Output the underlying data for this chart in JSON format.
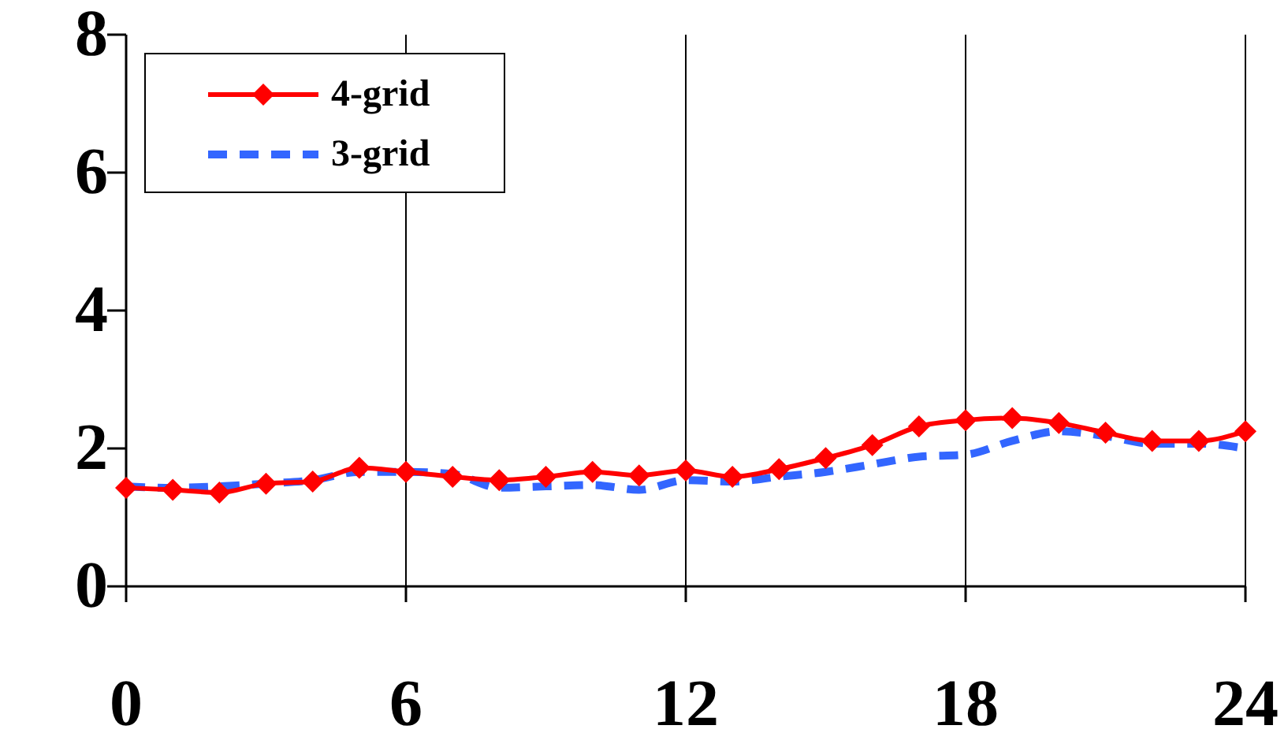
{
  "chart_data": {
    "type": "line",
    "x": [
      0,
      1,
      2,
      3,
      4,
      5,
      6,
      7,
      8,
      9,
      10,
      11,
      12,
      13,
      14,
      15,
      16,
      17,
      18,
      19,
      20,
      21,
      22,
      23,
      24
    ],
    "series": [
      {
        "name": "4-grid",
        "color": "#ff0000",
        "marker": "diamond",
        "line_style": "solid",
        "values": [
          1.43,
          1.4,
          1.36,
          1.49,
          1.52,
          1.72,
          1.66,
          1.59,
          1.54,
          1.59,
          1.66,
          1.61,
          1.68,
          1.59,
          1.7,
          1.86,
          2.05,
          2.32,
          2.41,
          2.44,
          2.37,
          2.23,
          2.11,
          2.11,
          2.25
        ]
      },
      {
        "name": "3-grid",
        "color": "#3366ff",
        "marker": "none",
        "line_style": "dashed",
        "values": [
          1.45,
          1.43,
          1.45,
          1.49,
          1.54,
          1.66,
          1.66,
          1.63,
          1.43,
          1.45,
          1.47,
          1.4,
          1.54,
          1.52,
          1.59,
          1.66,
          1.77,
          1.88,
          1.91,
          2.11,
          2.25,
          2.18,
          2.07,
          2.07,
          2.0
        ]
      }
    ],
    "xlim": [
      0,
      24
    ],
    "xticks": [
      0,
      6,
      12,
      18,
      24
    ],
    "ylim": [
      0,
      8
    ],
    "yticks": [
      0,
      2,
      4,
      6,
      8
    ],
    "grid": "x",
    "legend": "top left"
  }
}
